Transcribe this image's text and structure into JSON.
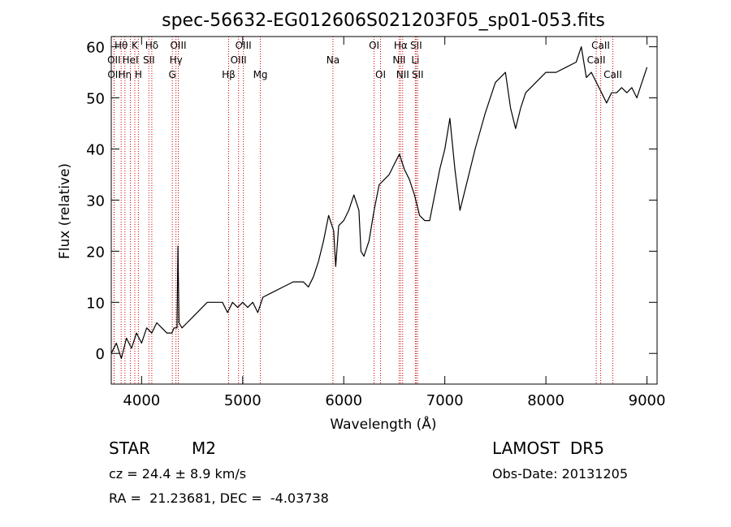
{
  "chart_data": {
    "type": "line",
    "title": "spec-56632-EG012606S021203F05_sp01-053.fits",
    "xlabel": "Wavelength (Å)",
    "ylabel": "Flux (relative)",
    "xlim": [
      3700,
      9100
    ],
    "ylim": [
      -6,
      62
    ],
    "xticks": [
      4000,
      5000,
      6000,
      7000,
      8000,
      9000
    ],
    "yticks": [
      0,
      10,
      20,
      30,
      40,
      50,
      60
    ],
    "grid": false,
    "series": [
      {
        "points": [
          [
            3700,
            0
          ],
          [
            3750,
            2
          ],
          [
            3800,
            -1
          ],
          [
            3850,
            3
          ],
          [
            3900,
            1
          ],
          [
            3950,
            4
          ],
          [
            4000,
            2
          ],
          [
            4050,
            5
          ],
          [
            4100,
            4
          ],
          [
            4150,
            6
          ],
          [
            4200,
            5
          ],
          [
            4250,
            4
          ],
          [
            4300,
            4
          ],
          [
            4320,
            5
          ],
          [
            4350,
            5
          ],
          [
            4360,
            21
          ],
          [
            4370,
            6
          ],
          [
            4400,
            5
          ],
          [
            4450,
            6
          ],
          [
            4500,
            7
          ],
          [
            4550,
            8
          ],
          [
            4600,
            9
          ],
          [
            4650,
            10
          ],
          [
            4700,
            10
          ],
          [
            4750,
            10
          ],
          [
            4800,
            10
          ],
          [
            4850,
            8
          ],
          [
            4900,
            10
          ],
          [
            4950,
            9
          ],
          [
            5000,
            10
          ],
          [
            5050,
            9
          ],
          [
            5100,
            10
          ],
          [
            5150,
            8
          ],
          [
            5200,
            11
          ],
          [
            5300,
            12
          ],
          [
            5400,
            13
          ],
          [
            5500,
            14
          ],
          [
            5600,
            14
          ],
          [
            5650,
            13
          ],
          [
            5700,
            15
          ],
          [
            5750,
            18
          ],
          [
            5800,
            22
          ],
          [
            5850,
            27
          ],
          [
            5900,
            24
          ],
          [
            5920,
            17
          ],
          [
            5950,
            25
          ],
          [
            6000,
            26
          ],
          [
            6050,
            28
          ],
          [
            6100,
            31
          ],
          [
            6150,
            28
          ],
          [
            6170,
            20
          ],
          [
            6200,
            19
          ],
          [
            6250,
            22
          ],
          [
            6300,
            28
          ],
          [
            6350,
            33
          ],
          [
            6400,
            34
          ],
          [
            6450,
            35
          ],
          [
            6500,
            37
          ],
          [
            6550,
            39
          ],
          [
            6600,
            36
          ],
          [
            6650,
            34
          ],
          [
            6700,
            31
          ],
          [
            6750,
            27
          ],
          [
            6800,
            26
          ],
          [
            6850,
            26
          ],
          [
            6900,
            31
          ],
          [
            6950,
            36
          ],
          [
            7000,
            40
          ],
          [
            7050,
            46
          ],
          [
            7100,
            36
          ],
          [
            7150,
            28
          ],
          [
            7200,
            32
          ],
          [
            7300,
            40
          ],
          [
            7400,
            47
          ],
          [
            7500,
            53
          ],
          [
            7600,
            55
          ],
          [
            7650,
            48
          ],
          [
            7700,
            44
          ],
          [
            7750,
            48
          ],
          [
            7800,
            51
          ],
          [
            7850,
            52
          ],
          [
            7900,
            53
          ],
          [
            8000,
            55
          ],
          [
            8100,
            55
          ],
          [
            8200,
            56
          ],
          [
            8300,
            57
          ],
          [
            8350,
            60
          ],
          [
            8400,
            54
          ],
          [
            8450,
            55
          ],
          [
            8500,
            53
          ],
          [
            8550,
            51
          ],
          [
            8600,
            49
          ],
          [
            8650,
            51
          ],
          [
            8700,
            51
          ],
          [
            8750,
            52
          ],
          [
            8800,
            51
          ],
          [
            8850,
            52
          ],
          [
            8900,
            50
          ],
          [
            8950,
            53
          ],
          [
            9000,
            56
          ]
        ]
      }
    ],
    "emission_lines": [
      {
        "label": "Hθ",
        "wavelength": 3798,
        "row": 1
      },
      {
        "label": "OII",
        "wavelength": 3727,
        "row": 2
      },
      {
        "label": "OII",
        "wavelength": 3729,
        "row": 3
      },
      {
        "label": "Hη",
        "wavelength": 3835,
        "row": 3
      },
      {
        "label": "K",
        "wavelength": 3933,
        "row": 1
      },
      {
        "label": "HeI",
        "wavelength": 3889,
        "row": 2
      },
      {
        "label": "H",
        "wavelength": 3968,
        "row": 3
      },
      {
        "label": "Hδ",
        "wavelength": 4101,
        "row": 1
      },
      {
        "label": "SII",
        "wavelength": 4072,
        "row": 2
      },
      {
        "label": "OIII",
        "wavelength": 4363,
        "row": 1
      },
      {
        "label": "Hγ",
        "wavelength": 4340,
        "row": 2
      },
      {
        "label": "G",
        "wavelength": 4304,
        "row": 3
      },
      {
        "label": "OIII",
        "wavelength": 5007,
        "row": 1
      },
      {
        "label": "OIII",
        "wavelength": 4959,
        "row": 2
      },
      {
        "label": "Hβ",
        "wavelength": 4861,
        "row": 3
      },
      {
        "label": "Mg",
        "wavelength": 5175,
        "row": 3
      },
      {
        "label": "Na",
        "wavelength": 5893,
        "row": 2
      },
      {
        "label": "OI",
        "wavelength": 6300,
        "row": 1
      },
      {
        "label": "OI",
        "wavelength": 6364,
        "row": 3
      },
      {
        "label": "Hα",
        "wavelength": 6563,
        "row": 1
      },
      {
        "label": "NII",
        "wavelength": 6548,
        "row": 2
      },
      {
        "label": "NII",
        "wavelength": 6583,
        "row": 3
      },
      {
        "label": "SII",
        "wavelength": 6716,
        "row": 1
      },
      {
        "label": "Li",
        "wavelength": 6708,
        "row": 2
      },
      {
        "label": "SII",
        "wavelength": 6731,
        "row": 3
      },
      {
        "label": "CaII",
        "wavelength": 8542,
        "row": 1
      },
      {
        "label": "CaII",
        "wavelength": 8498,
        "row": 2
      },
      {
        "label": "CaII",
        "wavelength": 8662,
        "row": 3
      }
    ]
  },
  "info": {
    "object_class": "STAR",
    "subclass": "M2",
    "survey": "LAMOST  DR5",
    "redshift": "cz = 24.4 ± 8.9 km/s",
    "obs_date": "Obs-Date: 20131205",
    "coords": "RA =  21.23681, DEC =  -4.03738"
  },
  "colors": {
    "spectrum": "#000000",
    "line_markers": "#cc0000",
    "axes": "#000000"
  }
}
